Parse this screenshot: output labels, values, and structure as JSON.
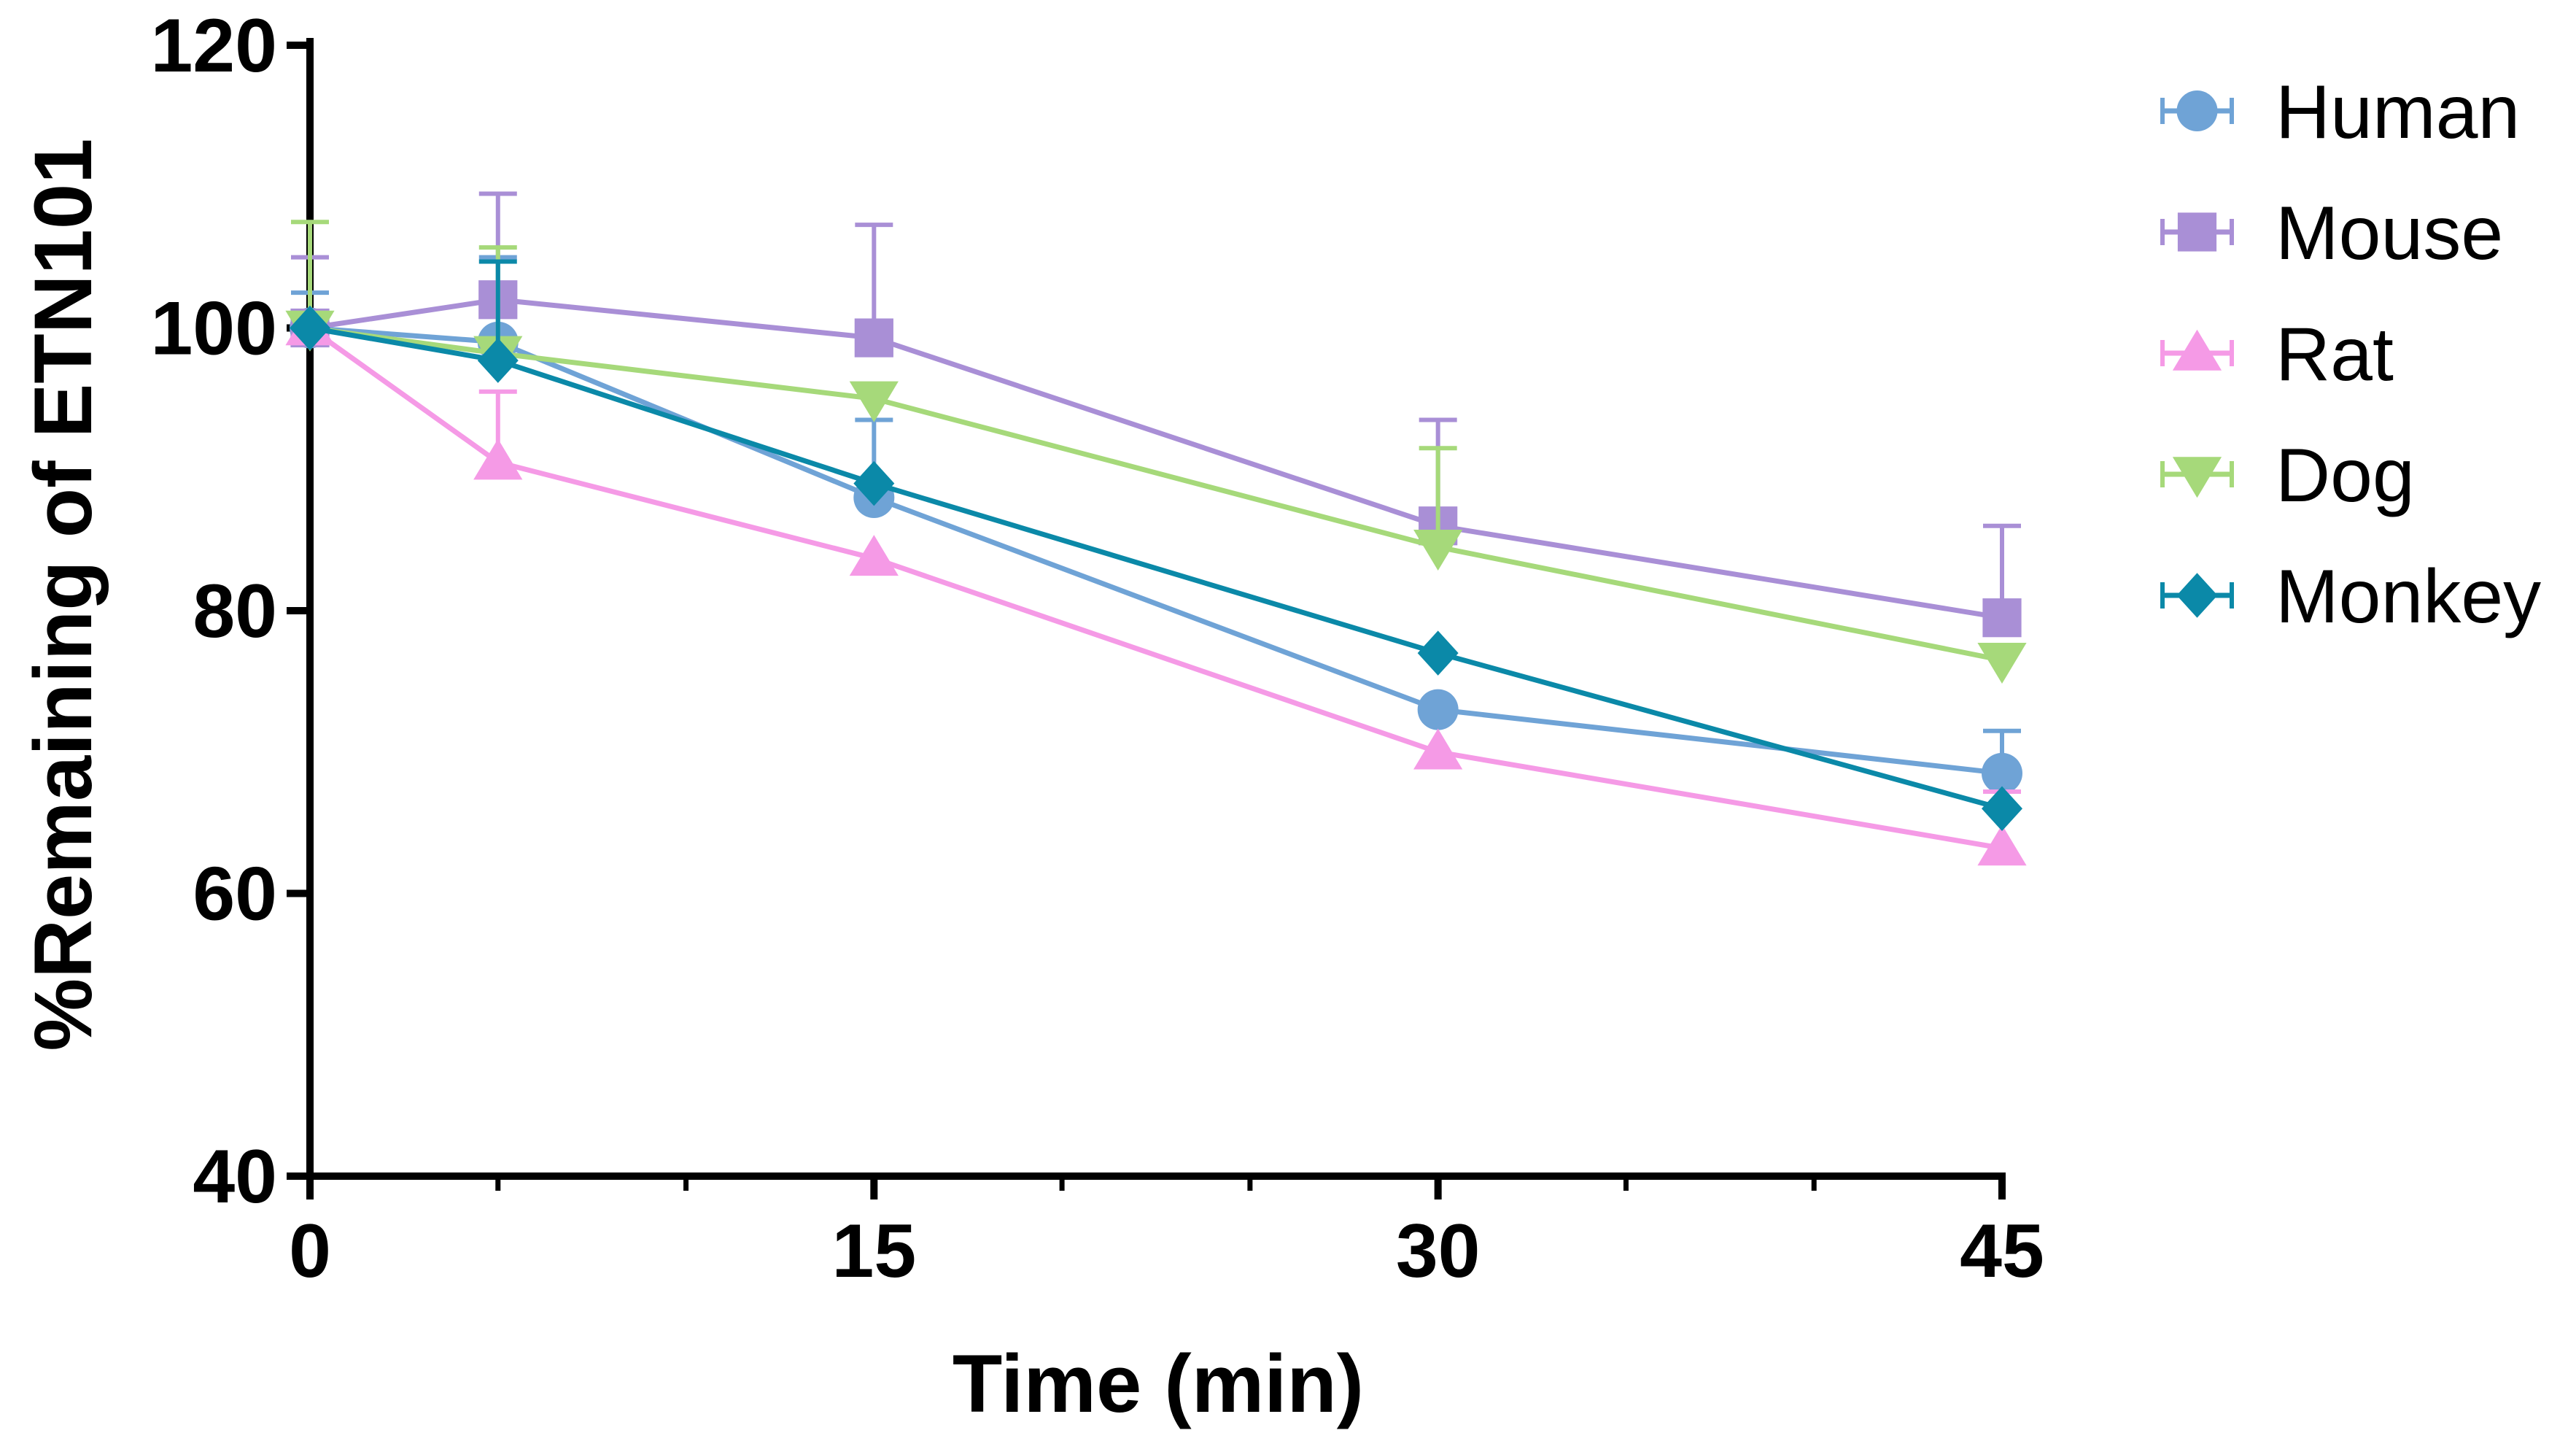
{
  "chart_data": {
    "type": "line",
    "title": "",
    "xlabel": "Time (min)",
    "ylabel": "%Remaining of ETN101",
    "xlim": [
      0,
      45
    ],
    "ylim": [
      40,
      120
    ],
    "xticks": [
      0,
      15,
      30,
      45
    ],
    "xtick_labels": [
      "0",
      "15",
      "30",
      "45"
    ],
    "x_minor_ticks": [
      5,
      10,
      20,
      25,
      35,
      40
    ],
    "yticks": [
      40,
      60,
      80,
      100,
      120
    ],
    "ytick_labels": [
      "40",
      "60",
      "80",
      "100",
      "120"
    ],
    "grid": false,
    "legend_position": "right",
    "x": [
      0,
      5,
      15,
      30,
      45
    ],
    "series": [
      {
        "name": "Human",
        "color": "#6fa3d6",
        "marker": "circle",
        "values": [
          100,
          99.0,
          88.0,
          73.0,
          68.5
        ],
        "errors": [
          2.5,
          6.0,
          5.5,
          0,
          3.0
        ]
      },
      {
        "name": "Mouse",
        "color": "#a98fd6",
        "marker": "square",
        "values": [
          100,
          102.0,
          99.3,
          86.0,
          79.5
        ],
        "errors": [
          5.0,
          7.5,
          8.0,
          7.5,
          6.5
        ]
      },
      {
        "name": "Rat",
        "color": "#f59ae6",
        "marker": "triangle-up",
        "values": [
          100,
          90.5,
          83.7,
          70.0,
          63.2
        ],
        "errors": [
          0,
          5.0,
          0,
          0,
          4.0
        ]
      },
      {
        "name": "Dog",
        "color": "#a6d97a",
        "marker": "triangle-down",
        "values": [
          100,
          98.2,
          95.0,
          84.5,
          76.5
        ],
        "errors": [
          7.5,
          7.5,
          0,
          7.0,
          0
        ]
      },
      {
        "name": "Monkey",
        "color": "#0b89a8",
        "marker": "diamond",
        "values": [
          100,
          97.7,
          89.0,
          77.0,
          66.0
        ],
        "errors": [
          0,
          7.0,
          0,
          0,
          0
        ]
      }
    ]
  }
}
